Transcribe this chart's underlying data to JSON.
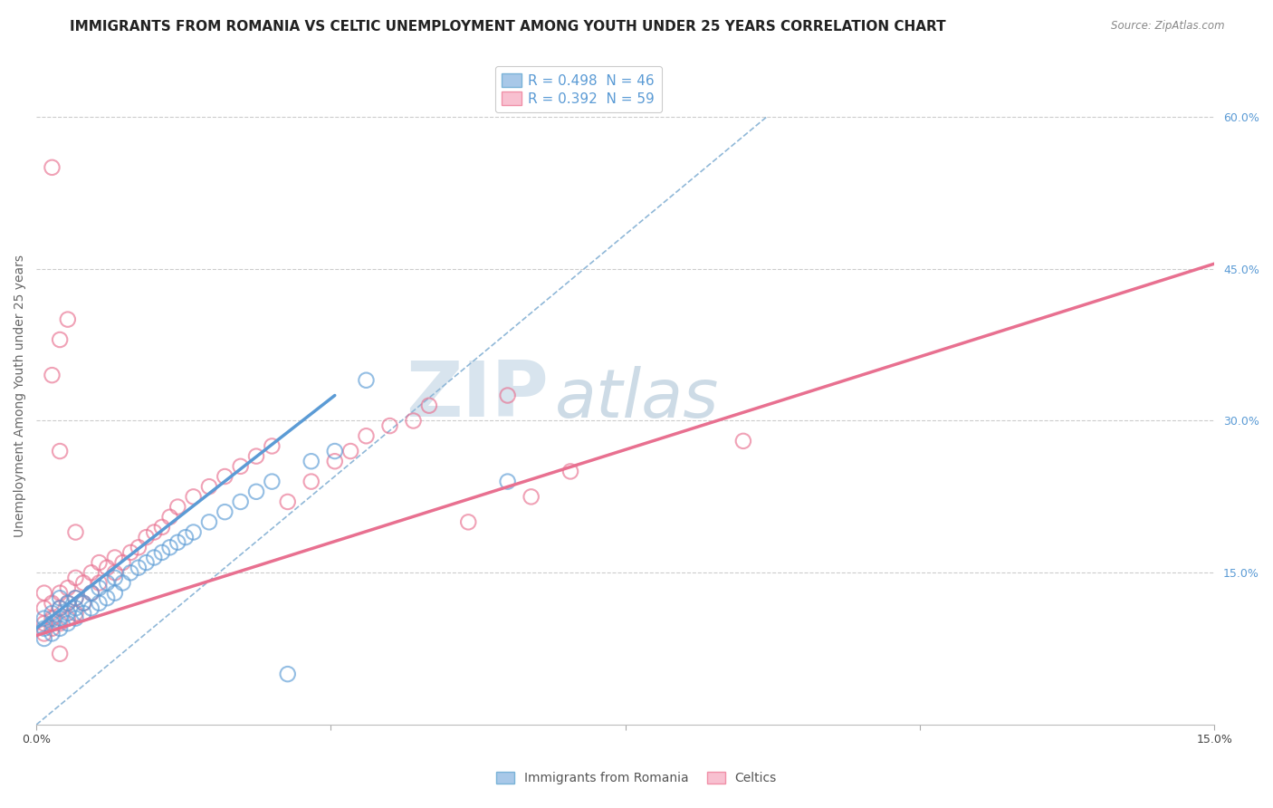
{
  "title": "IMMIGRANTS FROM ROMANIA VS CELTIC UNEMPLOYMENT AMONG YOUTH UNDER 25 YEARS CORRELATION CHART",
  "source": "Source: ZipAtlas.com",
  "ylabel": "Unemployment Among Youth under 25 years",
  "xlim": [
    0,
    0.15
  ],
  "ylim": [
    0,
    0.65
  ],
  "xtick_positions": [
    0.0,
    0.0375,
    0.075,
    0.1125,
    0.15
  ],
  "xtick_labels": [
    "0.0%",
    "",
    "",
    "",
    "15.0%"
  ],
  "ytick_positions_right": [
    0.15,
    0.3,
    0.45,
    0.6
  ],
  "ytick_labels_right": [
    "15.0%",
    "30.0%",
    "45.0%",
    "60.0%"
  ],
  "legend_entries": [
    {
      "label": "R = 0.498  N = 46",
      "color": "#7ab3d8"
    },
    {
      "label": "R = 0.392  N = 59",
      "color": "#f0a0b8"
    }
  ],
  "legend_bottom": [
    "Immigrants from Romania",
    "Celtics"
  ],
  "blue_scatter_x": [
    0.001,
    0.001,
    0.001,
    0.002,
    0.002,
    0.002,
    0.003,
    0.003,
    0.003,
    0.003,
    0.004,
    0.004,
    0.004,
    0.005,
    0.005,
    0.005,
    0.006,
    0.006,
    0.007,
    0.007,
    0.008,
    0.008,
    0.009,
    0.009,
    0.01,
    0.01,
    0.011,
    0.012,
    0.013,
    0.014,
    0.015,
    0.016,
    0.017,
    0.018,
    0.019,
    0.02,
    0.022,
    0.024,
    0.026,
    0.028,
    0.03,
    0.032,
    0.035,
    0.038,
    0.042,
    0.06
  ],
  "blue_scatter_y": [
    0.085,
    0.095,
    0.105,
    0.09,
    0.1,
    0.11,
    0.095,
    0.105,
    0.115,
    0.125,
    0.1,
    0.11,
    0.12,
    0.105,
    0.115,
    0.125,
    0.11,
    0.12,
    0.115,
    0.13,
    0.12,
    0.135,
    0.125,
    0.14,
    0.13,
    0.145,
    0.14,
    0.15,
    0.155,
    0.16,
    0.165,
    0.17,
    0.175,
    0.18,
    0.185,
    0.19,
    0.2,
    0.21,
    0.22,
    0.23,
    0.24,
    0.05,
    0.26,
    0.27,
    0.34,
    0.24
  ],
  "pink_scatter_x": [
    0.001,
    0.001,
    0.001,
    0.001,
    0.002,
    0.002,
    0.002,
    0.003,
    0.003,
    0.003,
    0.004,
    0.004,
    0.004,
    0.005,
    0.005,
    0.005,
    0.006,
    0.006,
    0.007,
    0.007,
    0.008,
    0.008,
    0.009,
    0.01,
    0.01,
    0.011,
    0.012,
    0.013,
    0.014,
    0.015,
    0.016,
    0.017,
    0.018,
    0.02,
    0.022,
    0.024,
    0.026,
    0.028,
    0.03,
    0.032,
    0.035,
    0.038,
    0.04,
    0.042,
    0.045,
    0.048,
    0.05,
    0.055,
    0.06,
    0.063,
    0.005,
    0.003,
    0.002,
    0.003,
    0.004,
    0.002,
    0.003,
    0.09,
    0.068
  ],
  "pink_scatter_y": [
    0.09,
    0.1,
    0.115,
    0.13,
    0.095,
    0.105,
    0.12,
    0.1,
    0.115,
    0.13,
    0.105,
    0.12,
    0.135,
    0.11,
    0.125,
    0.145,
    0.12,
    0.14,
    0.13,
    0.15,
    0.14,
    0.16,
    0.155,
    0.15,
    0.165,
    0.16,
    0.17,
    0.175,
    0.185,
    0.19,
    0.195,
    0.205,
    0.215,
    0.225,
    0.235,
    0.245,
    0.255,
    0.265,
    0.275,
    0.22,
    0.24,
    0.26,
    0.27,
    0.285,
    0.295,
    0.3,
    0.315,
    0.2,
    0.325,
    0.225,
    0.19,
    0.27,
    0.345,
    0.38,
    0.4,
    0.55,
    0.07,
    0.28,
    0.25
  ],
  "blue_line_x": [
    0.0,
    0.038
  ],
  "blue_line_y": [
    0.095,
    0.325
  ],
  "pink_line_x": [
    0.0,
    0.15
  ],
  "pink_line_y": [
    0.088,
    0.455
  ],
  "dashed_line_x": [
    0.0,
    0.093
  ],
  "dashed_line_y": [
    0.0,
    0.6
  ],
  "blue_color": "#5b9bd5",
  "pink_color": "#e87090",
  "dashed_color": "#90b8d8",
  "background_color": "#ffffff",
  "grid_color": "#cccccc",
  "watermark_zip": "ZIP",
  "watermark_atlas": "atlas",
  "watermark_color": "#c8d8e8",
  "title_fontsize": 11,
  "axis_label_fontsize": 10,
  "tick_fontsize": 9
}
